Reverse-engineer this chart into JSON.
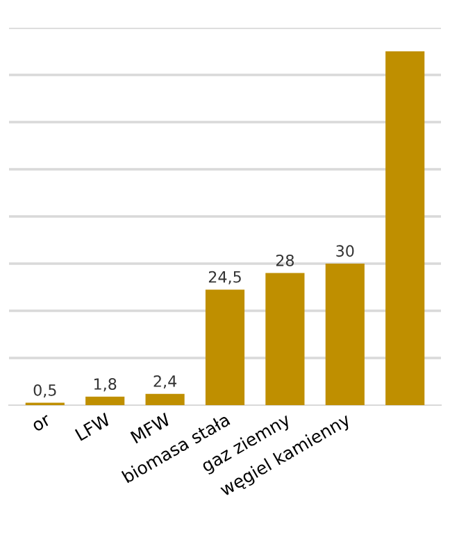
{
  "chart_data": {
    "type": "bar",
    "categories": [
      "or",
      "LFW",
      "MFW",
      "biomasa stała",
      "gaz ziemny",
      "węgiel kamienny",
      null
    ],
    "values": [
      0.5,
      1.8,
      2.4,
      24.5,
      28,
      30,
      75
    ],
    "value_labels": [
      "0,5",
      "1,8",
      "2,4",
      "24,5",
      "28",
      "30",
      null
    ],
    "color": "#bf8f00",
    "ylim": [
      0,
      80
    ],
    "yticks": [
      {
        "value": 10,
        "label": null
      },
      {
        "value": 20,
        "label": null
      },
      {
        "value": 30,
        "label": null
      },
      {
        "value": 40,
        "label": null
      },
      {
        "value": 50,
        "label": null
      },
      {
        "value": 60,
        "label": null
      },
      {
        "value": 70,
        "label": null
      },
      {
        "value": 80,
        "label": null
      }
    ],
    "grid": "y"
  }
}
